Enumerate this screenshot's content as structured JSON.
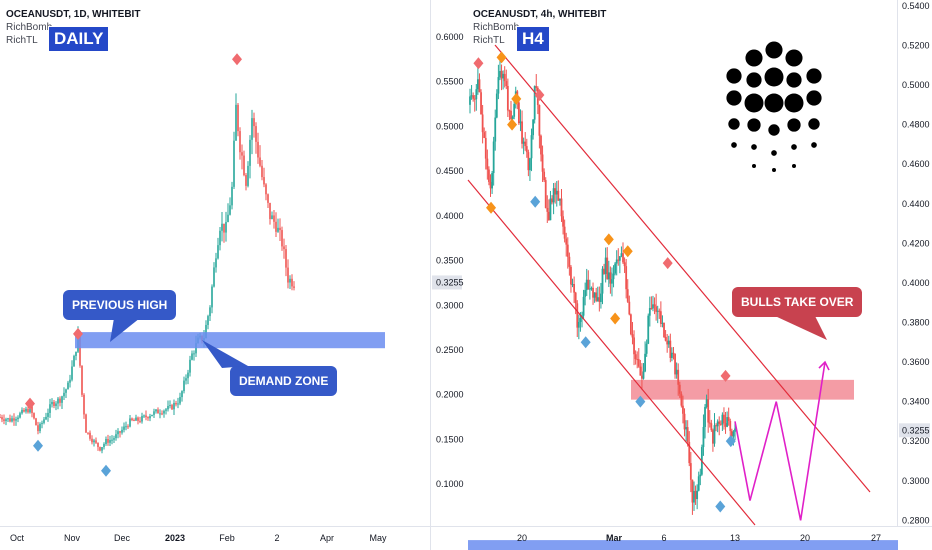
{
  "charts": {
    "left": {
      "header": {
        "symbol": "OCEANUSDT, 1D, WHITEBIT",
        "indicators": [
          "RichBomb",
          "RichTL"
        ]
      },
      "badge": "DAILY",
      "annotations": {
        "previous_high": "PREVIOUS HIGH",
        "demand_zone": "DEMAND ZONE"
      },
      "price_label": "0.3255",
      "x_ticks": [
        "Oct",
        "Nov",
        "Dec",
        "2023",
        "Feb",
        "2",
        "Apr",
        "May"
      ]
    },
    "right": {
      "header": {
        "symbol": "OCEANUSDT, 4h, WHITEBIT",
        "indicators": [
          "RichBomb",
          "RichTL"
        ]
      },
      "badge": "H4",
      "annotations": {
        "bulls": "BULLS TAKE OVER"
      },
      "price_label": "0.3255",
      "x_ticks": [
        "20",
        "Mar",
        "6",
        "13",
        "20",
        "27"
      ]
    }
  },
  "chart_data": [
    {
      "type": "candlestick",
      "timeframe": "1D",
      "symbol": "OCEANUSDT",
      "exchange": "WHITEBIT",
      "y_ticks": [
        "0.6000",
        "0.5500",
        "0.5000",
        "0.4500",
        "0.4000",
        "0.3500",
        "0.3000",
        "0.2500",
        "0.2000",
        "0.1500",
        "0.1000"
      ],
      "ylim": [
        0.06,
        0.63
      ],
      "last_price": 0.3255,
      "x_ticks": [
        "Oct",
        "Nov",
        "Dec",
        "2023",
        "Feb",
        "2",
        "Apr",
        "May"
      ],
      "price_path": [
        [
          0,
          0.175
        ],
        [
          10,
          0.172
        ],
        [
          20,
          0.178
        ],
        [
          30,
          0.185
        ],
        [
          38,
          0.16
        ],
        [
          45,
          0.175
        ],
        [
          52,
          0.19
        ],
        [
          60,
          0.195
        ],
        [
          68,
          0.21
        ],
        [
          74,
          0.24
        ],
        [
          78,
          0.265
        ],
        [
          82,
          0.2
        ],
        [
          86,
          0.16
        ],
        [
          92,
          0.15
        ],
        [
          100,
          0.14
        ],
        [
          106,
          0.148
        ],
        [
          112,
          0.15
        ],
        [
          120,
          0.158
        ],
        [
          130,
          0.17
        ],
        [
          140,
          0.172
        ],
        [
          150,
          0.178
        ],
        [
          160,
          0.182
        ],
        [
          170,
          0.185
        ],
        [
          180,
          0.195
        ],
        [
          186,
          0.22
        ],
        [
          192,
          0.245
        ],
        [
          198,
          0.26
        ],
        [
          204,
          0.265
        ],
        [
          210,
          0.3
        ],
        [
          216,
          0.36
        ],
        [
          220,
          0.39
        ],
        [
          226,
          0.385
        ],
        [
          232,
          0.43
        ],
        [
          236,
          0.52
        ],
        [
          240,
          0.48
        ],
        [
          246,
          0.44
        ],
        [
          252,
          0.51
        ],
        [
          258,
          0.47
        ],
        [
          264,
          0.43
        ],
        [
          270,
          0.4
        ],
        [
          276,
          0.39
        ],
        [
          282,
          0.37
        ],
        [
          288,
          0.33
        ],
        [
          294,
          0.325
        ]
      ],
      "zones": [
        {
          "name": "demand-zone",
          "from": 0.252,
          "to": 0.27
        }
      ],
      "markers": [
        {
          "kind": "high",
          "index_x": 30,
          "price": 0.19
        },
        {
          "kind": "low",
          "index_x": 38,
          "price": 0.143
        },
        {
          "kind": "high",
          "index_x": 78,
          "price": 0.268
        },
        {
          "kind": "low",
          "index_x": 106,
          "price": 0.115
        },
        {
          "kind": "high",
          "index_x": 237,
          "price": 0.575
        }
      ]
    },
    {
      "type": "candlestick",
      "timeframe": "4h",
      "symbol": "OCEANUSDT",
      "exchange": "WHITEBIT",
      "y_ticks": [
        "0.5400",
        "0.5200",
        "0.5000",
        "0.4800",
        "0.4600",
        "0.4400",
        "0.4200",
        "0.4000",
        "0.3800",
        "0.3600",
        "0.3400",
        "0.3200",
        "0.3000",
        "0.2800"
      ],
      "ylim": [
        0.265,
        0.543
      ],
      "last_price": 0.3255,
      "x_ticks": [
        "20",
        "Mar",
        "6",
        "13",
        "20",
        "27"
      ],
      "price_path": [
        [
          0,
          0.49
        ],
        [
          8,
          0.5
        ],
        [
          14,
          0.47
        ],
        [
          20,
          0.445
        ],
        [
          26,
          0.5
        ],
        [
          32,
          0.51
        ],
        [
          38,
          0.48
        ],
        [
          44,
          0.495
        ],
        [
          50,
          0.47
        ],
        [
          56,
          0.46
        ],
        [
          62,
          0.5
        ],
        [
          68,
          0.465
        ],
        [
          74,
          0.43
        ],
        [
          80,
          0.45
        ],
        [
          86,
          0.44
        ],
        [
          92,
          0.42
        ],
        [
          98,
          0.395
        ],
        [
          104,
          0.375
        ],
        [
          110,
          0.4
        ],
        [
          116,
          0.395
        ],
        [
          122,
          0.39
        ],
        [
          128,
          0.41
        ],
        [
          134,
          0.4
        ],
        [
          140,
          0.415
        ],
        [
          146,
          0.41
        ],
        [
          152,
          0.38
        ],
        [
          158,
          0.36
        ],
        [
          164,
          0.35
        ],
        [
          170,
          0.385
        ],
        [
          176,
          0.39
        ],
        [
          182,
          0.38
        ],
        [
          188,
          0.37
        ],
        [
          194,
          0.36
        ],
        [
          200,
          0.34
        ],
        [
          206,
          0.325
        ],
        [
          212,
          0.29
        ],
        [
          218,
          0.3
        ],
        [
          224,
          0.34
        ],
        [
          230,
          0.32
        ],
        [
          236,
          0.33
        ],
        [
          242,
          0.332
        ],
        [
          248,
          0.325
        ],
        [
          252,
          0.326
        ]
      ],
      "projection": [
        [
          252,
          0.33
        ],
        [
          268,
          0.29
        ],
        [
          296,
          0.34
        ],
        [
          322,
          0.28
        ],
        [
          348,
          0.36
        ]
      ],
      "zones": [
        {
          "name": "resistance-zone",
          "from": 0.341,
          "to": 0.351
        },
        {
          "name": "support-zone",
          "from": 0.262,
          "to": 0.27
        }
      ],
      "markers": [
        {
          "kind": "high",
          "index_x": 8,
          "price": 0.511,
          "color": "red"
        },
        {
          "kind": "high",
          "index_x": 30,
          "price": 0.514,
          "color": "orange"
        },
        {
          "kind": "low",
          "index_x": 20,
          "price": 0.438,
          "color": "orange"
        },
        {
          "kind": "high",
          "index_x": 44,
          "price": 0.493,
          "color": "orange"
        },
        {
          "kind": "low",
          "index_x": 40,
          "price": 0.48,
          "color": "orange"
        },
        {
          "kind": "high",
          "index_x": 66,
          "price": 0.495,
          "color": "red"
        },
        {
          "kind": "low",
          "index_x": 62,
          "price": 0.441,
          "color": "blue"
        },
        {
          "kind": "high",
          "index_x": 132,
          "price": 0.422,
          "color": "orange"
        },
        {
          "kind": "high",
          "index_x": 150,
          "price": 0.416,
          "color": "orange"
        },
        {
          "kind": "low",
          "index_x": 138,
          "price": 0.382,
          "color": "orange"
        },
        {
          "kind": "high",
          "index_x": 188,
          "price": 0.41,
          "color": "red"
        },
        {
          "kind": "low",
          "index_x": 110,
          "price": 0.37,
          "color": "blue"
        },
        {
          "kind": "low",
          "index_x": 162,
          "price": 0.34,
          "color": "blue"
        },
        {
          "kind": "high",
          "index_x": 243,
          "price": 0.353,
          "color": "red"
        },
        {
          "kind": "low",
          "index_x": 248,
          "price": 0.32,
          "color": "blue"
        },
        {
          "kind": "low",
          "index_x": 238,
          "price": 0.287,
          "color": "blue"
        }
      ]
    }
  ],
  "colors": {
    "up": "#26a69a",
    "down": "#ef5350",
    "channel": "#e22c3b",
    "projection": "#e020c8",
    "demand_zone": "#6b8df0",
    "resistance_zone": "#f28b95",
    "badge": "#2448c8",
    "annotation_blue": "#3559c8",
    "annotation_red": "#c8424f",
    "marker_red": "#f06b6f",
    "marker_blue": "#5aa3d8",
    "marker_orange": "#f7931a"
  }
}
